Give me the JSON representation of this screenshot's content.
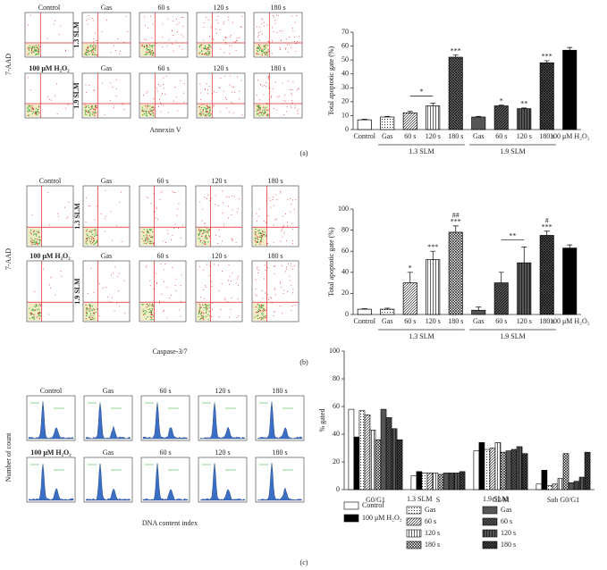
{
  "panels": [
    {
      "label": "(a)",
      "flow": {
        "kind": "scatter",
        "x_label": "Annexin V",
        "y_label": "7-AAD",
        "rows": [
          {
            "label": "1.3 SLM",
            "headers": [
              "Control",
              "Gas",
              "60 s",
              "120 s",
              "180 s"
            ]
          },
          {
            "label": "1.9 SLM",
            "headers": [
              "100 μM H₂O₂",
              "Gas",
              "60 s",
              "120 s",
              "180 s"
            ]
          }
        ]
      }
    },
    {
      "label": "(b)",
      "flow": {
        "kind": "scatter",
        "x_label": "Caspase-3/7",
        "y_label": "7-AAD",
        "rows": [
          {
            "label": "1.3 SLM",
            "headers": [
              "Control",
              "Gas",
              "60 s",
              "120 s",
              "180 s"
            ]
          },
          {
            "label": "1.9 SLM",
            "headers": [
              "100 μM H₂O₂",
              "Gas",
              "60 s",
              "120 s",
              "180 s"
            ]
          }
        ]
      }
    },
    {
      "label": "(c)",
      "flow": {
        "kind": "hist",
        "x_label": "DNA content index",
        "y_label": "Number of count",
        "rows": [
          {
            "headers": [
              "Control",
              "Gas",
              "60 s",
              "120 s",
              "180 s"
            ]
          },
          {
            "headers": [
              "100 μM H₂O₂",
              "Gas",
              "60 s",
              "120 s",
              "180 s"
            ]
          }
        ]
      }
    }
  ],
  "chart_data": [
    {
      "type": "bar",
      "y_label": "Total apoptotic gate (%)",
      "categories": [
        "Control",
        "Gas",
        "60 s",
        "120 s",
        "180 s",
        "Gas",
        "60 s",
        "120 s",
        "180 s",
        "100 μM H₂O₂"
      ],
      "values": [
        7,
        9,
        12,
        17,
        52,
        9,
        17,
        15,
        48,
        57
      ],
      "errors": [
        0.5,
        0.5,
        1,
        2,
        1.5,
        0.5,
        0.5,
        0.5,
        1.5,
        2
      ],
      "colors": [
        "#ffffff",
        "#ffffff",
        "#ffffff",
        "#ffffff",
        "#777777",
        "#555555",
        "#555555",
        "#555555",
        "#555555",
        "#000000"
      ],
      "patterns": [
        "none",
        "dots",
        "diag",
        "vert",
        "cross",
        "none",
        "diag",
        "vert",
        "cross",
        "none"
      ],
      "groups": [
        {
          "name": "1.3 SLM",
          "span": [
            1,
            4
          ]
        },
        {
          "name": "1.9 SLM",
          "span": [
            5,
            8
          ]
        }
      ],
      "annotations": [
        {
          "text": "*",
          "span": [
            2,
            3
          ]
        },
        {
          "text": "***",
          "category": 4
        },
        {
          "text": "*",
          "category": 6
        },
        {
          "text": "**",
          "category": 7
        },
        {
          "text": "***",
          "category": 8
        }
      ],
      "ylim": [
        0,
        70
      ],
      "yticks": [
        0,
        10,
        20,
        30,
        40,
        50,
        60,
        70
      ],
      "grid": false
    },
    {
      "type": "bar",
      "y_label": "Total apoptotic gate (%)",
      "categories": [
        "Control",
        "Gas",
        "60 s",
        "120 s",
        "180 s",
        "Gas",
        "60 s",
        "120 s",
        "180 s",
        "100 μM H₂O₂"
      ],
      "values": [
        5,
        5,
        30,
        52,
        78,
        4,
        30,
        49,
        75,
        63
      ],
      "errors": [
        0.5,
        1,
        10,
        8,
        6,
        3,
        10,
        15,
        4,
        3
      ],
      "colors": [
        "#ffffff",
        "#ffffff",
        "#ffffff",
        "#ffffff",
        "#ffffff",
        "#555555",
        "#555555",
        "#555555",
        "#555555",
        "#000000"
      ],
      "patterns": [
        "none",
        "dots",
        "diag",
        "vert",
        "cross",
        "none",
        "diag",
        "vert",
        "cross",
        "none"
      ],
      "groups": [
        {
          "name": "1.3 SLM",
          "span": [
            1,
            4
          ]
        },
        {
          "name": "1.9 SLM",
          "span": [
            5,
            8
          ]
        }
      ],
      "annotations": [
        {
          "text": "*",
          "category": 2
        },
        {
          "text": "***",
          "category": 3
        },
        {
          "text": "***",
          "category": 4
        },
        {
          "text": "##",
          "category": 4
        },
        {
          "text": "**",
          "span": [
            6,
            7
          ]
        },
        {
          "text": "***",
          "category": 8
        },
        {
          "text": "#",
          "category": 8
        }
      ],
      "ylim": [
        0,
        100
      ],
      "yticks": [
        0,
        20,
        40,
        60,
        80,
        100
      ],
      "grid": false
    },
    {
      "type": "grouped-bar",
      "y_label": "% gated",
      "categories": [
        "G0/G1",
        "S",
        "G2/M",
        "Sub G0/G1"
      ],
      "series": [
        {
          "name": "Control",
          "color": "#ffffff",
          "pattern": "none",
          "values": [
            58,
            10,
            28,
            4
          ]
        },
        {
          "name": "100 μM H₂O₂",
          "color": "#000000",
          "pattern": "none",
          "values": [
            38,
            13,
            34,
            14
          ]
        },
        {
          "name": "Gas",
          "color": "#ffffff",
          "pattern": "dots",
          "values": [
            57,
            12,
            29,
            3
          ]
        },
        {
          "name": "60 s",
          "color": "#ffffff",
          "pattern": "diag",
          "values": [
            54,
            12,
            30,
            4
          ]
        },
        {
          "name": "120 s",
          "color": "#ffffff",
          "pattern": "vert",
          "values": [
            43,
            12,
            34,
            8
          ]
        },
        {
          "name": "180 s",
          "color": "#ffffff",
          "pattern": "cross",
          "values": [
            36,
            11,
            27,
            26
          ]
        },
        {
          "name": "Gas",
          "color": "#555555",
          "pattern": "none",
          "values": [
            58,
            12,
            28,
            5
          ]
        },
        {
          "name": "60 s",
          "color": "#555555",
          "pattern": "diag",
          "values": [
            52,
            12,
            29,
            6
          ]
        },
        {
          "name": "120 s",
          "color": "#555555",
          "pattern": "vert",
          "values": [
            44,
            12,
            31,
            9
          ]
        },
        {
          "name": "180 s",
          "color": "#555555",
          "pattern": "cross",
          "values": [
            36,
            13,
            26,
            27
          ]
        }
      ],
      "legend_groups": [
        {
          "name": "1.3 SLM",
          "series": [
            2,
            3,
            4,
            5
          ]
        },
        {
          "name": "1.9 SLM",
          "series": [
            6,
            7,
            8,
            9
          ]
        }
      ],
      "ylim": [
        0,
        100
      ],
      "yticks": [
        0,
        20,
        40,
        60,
        80,
        100
      ],
      "grid": false
    }
  ]
}
